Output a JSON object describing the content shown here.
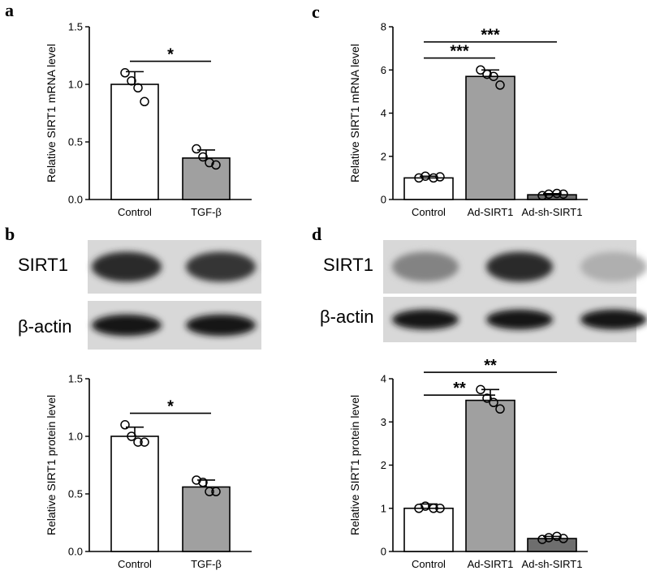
{
  "panels": {
    "a": "a",
    "b": "b",
    "c": "c",
    "d": "d"
  },
  "blots": {
    "b": {
      "bands": [
        "SIRT1",
        "β-actin"
      ],
      "lanes": 2,
      "intensity": [
        [
          0.85,
          0.8
        ],
        [
          0.95,
          0.95
        ]
      ]
    },
    "d": {
      "bands": [
        "SIRT1",
        "β-actin"
      ],
      "lanes": 3,
      "intensity": [
        [
          0.45,
          0.85,
          0.25
        ],
        [
          0.95,
          0.95,
          0.95
        ]
      ]
    }
  },
  "chart_data": [
    {
      "id": "a",
      "type": "bar",
      "ylabel": "Relative SIRT1 mRNA level",
      "ylim": [
        0,
        1.5
      ],
      "yticks": [
        "0.0",
        "0.5",
        "1.0",
        "1.5"
      ],
      "ytick_values": [
        0,
        0.5,
        1.0,
        1.5
      ],
      "categories": [
        "Control",
        "TGF-β"
      ],
      "values": [
        1.0,
        0.36
      ],
      "errors": [
        0.11,
        0.07
      ],
      "points": [
        [
          1.1,
          1.03,
          0.97,
          0.85
        ],
        [
          0.44,
          0.37,
          0.32,
          0.3
        ]
      ],
      "colors": [
        "#ffffff",
        "#a0a0a0"
      ],
      "brackets": [
        {
          "from": 0,
          "to": 1,
          "y": 1.2,
          "label": "*"
        }
      ]
    },
    {
      "id": "b",
      "type": "bar",
      "ylabel": "Relative SIRT1 protein level",
      "ylim": [
        0,
        1.5
      ],
      "yticks": [
        "0.0",
        "0.5",
        "1.0",
        "1.5"
      ],
      "ytick_values": [
        0,
        0.5,
        1.0,
        1.5
      ],
      "categories": [
        "Control",
        "TGF-β"
      ],
      "values": [
        1.0,
        0.56
      ],
      "errors": [
        0.08,
        0.06
      ],
      "points": [
        [
          1.1,
          1.0,
          0.95,
          0.95
        ],
        [
          0.62,
          0.6,
          0.52,
          0.52
        ]
      ],
      "colors": [
        "#ffffff",
        "#a0a0a0"
      ],
      "brackets": [
        {
          "from": 0,
          "to": 1,
          "y": 1.2,
          "label": "*"
        }
      ]
    },
    {
      "id": "c",
      "type": "bar",
      "ylabel": "Relative SIRT1 mRNA level",
      "ylim": [
        0,
        8
      ],
      "yticks": [
        "0",
        "2",
        "4",
        "6",
        "8"
      ],
      "ytick_values": [
        0,
        2,
        4,
        6,
        8
      ],
      "categories": [
        "Control",
        "Ad-SIRT1",
        "Ad-sh-SIRT1"
      ],
      "values": [
        1.0,
        5.7,
        0.22
      ],
      "errors": [
        0.08,
        0.3,
        0.05
      ],
      "points": [
        [
          1.0,
          1.08,
          1.0,
          1.05
        ],
        [
          6.0,
          5.8,
          5.7,
          5.3
        ],
        [
          0.18,
          0.25,
          0.28,
          0.25
        ]
      ],
      "colors": [
        "#ffffff",
        "#a0a0a0",
        "#6e6e6e"
      ],
      "brackets": [
        {
          "from": 0,
          "to": 1,
          "y": 6.55,
          "label": "***"
        },
        {
          "from": 0,
          "to": 2,
          "y": 7.3,
          "label": "***"
        }
      ]
    },
    {
      "id": "d",
      "type": "bar",
      "ylabel": "Relative SIRT1 protein level",
      "ylim": [
        0,
        4
      ],
      "yticks": [
        "0",
        "1",
        "2",
        "3",
        "4"
      ],
      "ytick_values": [
        0,
        1,
        2,
        3,
        4
      ],
      "categories": [
        "Control",
        "Ad-SIRT1",
        "Ad-sh-SIRT1"
      ],
      "values": [
        1.0,
        3.5,
        0.3
      ],
      "errors": [
        0.1,
        0.25,
        0.05
      ],
      "points": [
        [
          1.0,
          1.05,
          1.0,
          1.0
        ],
        [
          3.75,
          3.55,
          3.45,
          3.3
        ],
        [
          0.28,
          0.32,
          0.35,
          0.3
        ]
      ],
      "colors": [
        "#ffffff",
        "#a0a0a0",
        "#6e6e6e"
      ],
      "brackets": [
        {
          "from": 0,
          "to": 1,
          "y": 3.62,
          "label": "**"
        },
        {
          "from": 0,
          "to": 2,
          "y": 4.15,
          "label": "**"
        }
      ]
    }
  ]
}
